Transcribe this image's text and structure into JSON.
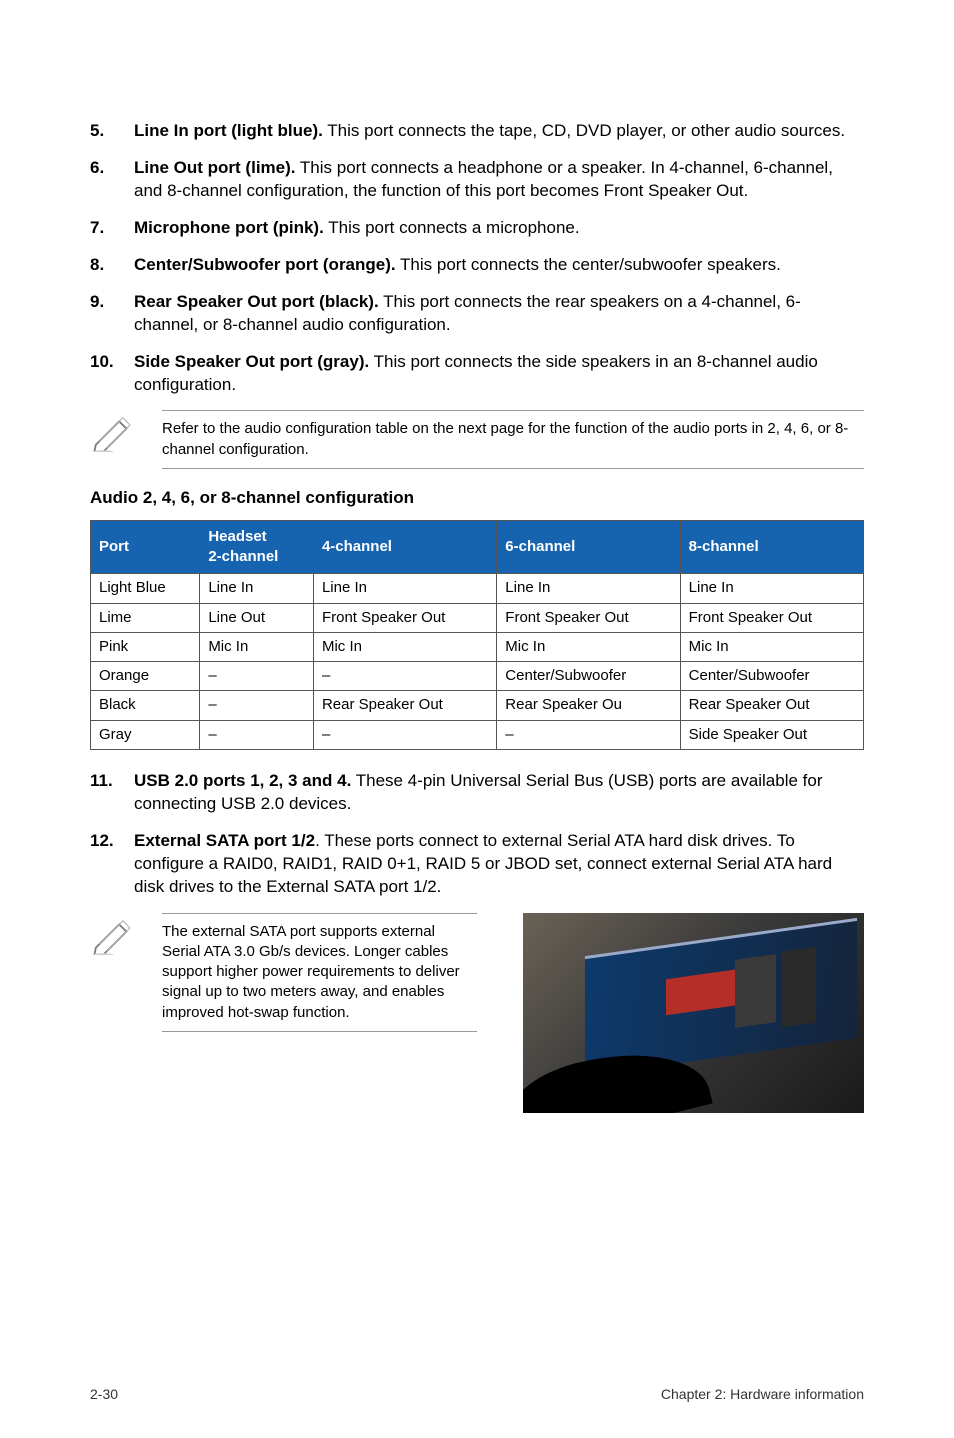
{
  "items": [
    {
      "num": "5.",
      "bold": "Line In port (light blue).",
      "text": " This port connects the tape, CD, DVD player, or other audio sources."
    },
    {
      "num": "6.",
      "bold": "Line Out port (lime).",
      "text": " This port connects a headphone or a speaker. In 4-channel, 6-channel, and 8-channel configuration, the function of this port becomes Front Speaker Out."
    },
    {
      "num": "7.",
      "bold": "Microphone port (pink).",
      "text": " This port connects a microphone."
    },
    {
      "num": "8.",
      "bold": "Center/Subwoofer port (orange).",
      "text": " This port connects the center/subwoofer speakers."
    },
    {
      "num": "9.",
      "bold": "Rear Speaker Out port (black).",
      "text": " This port connects the rear speakers on a 4-channel, 6-channel, or 8-channel audio configuration."
    },
    {
      "num": "10.",
      "bold": "Side Speaker Out port (gray).",
      "text": " This port connects the side speakers in an 8-channel audio configuration."
    }
  ],
  "note1": "Refer to the audio configuration table on the next page for the function of the audio ports in 2, 4, 6, or 8-channel configuration.",
  "table_heading": "Audio 2, 4, 6, or 8-channel configuration",
  "table": {
    "headers": {
      "port": "Port",
      "headset_l1": "Headset",
      "headset_l2": "2-channel",
      "c4": "4-channel",
      "c6": "6-channel",
      "c8": "8-channel"
    },
    "rows": [
      [
        "Light Blue",
        "Line In",
        "Line In",
        "Line In",
        "Line In"
      ],
      [
        "Lime",
        "Line Out",
        "Front Speaker Out",
        "Front Speaker Out",
        "Front Speaker Out"
      ],
      [
        "Pink",
        "Mic In",
        "Mic In",
        "Mic In",
        "Mic In"
      ],
      [
        "Orange",
        "–",
        "–",
        "Center/Subwoofer",
        "Center/Subwoofer"
      ],
      [
        "Black",
        "–",
        "Rear Speaker Out",
        "Rear Speaker Ou",
        "Rear Speaker Out"
      ],
      [
        "Gray",
        "–",
        "–",
        "–",
        "Side Speaker Out"
      ]
    ]
  },
  "items2": [
    {
      "num": "11.",
      "bold": "USB 2.0 ports 1, 2, 3 and 4.",
      "text": " These 4-pin Universal Serial Bus (USB) ports are available for connecting USB 2.0 devices."
    },
    {
      "num": "12.",
      "bold": "External SATA port 1/2",
      "text": ". These ports connect to external Serial ATA hard disk drives. To configure a RAID0, RAID1, RAID 0+1, RAID 5 or JBOD set, connect external Serial ATA hard disk drives to the External SATA port 1/2."
    }
  ],
  "note2": "The external SATA port supports external Serial ATA 3.0 Gb/s devices. Longer cables support higher power requirements to deliver signal up to two meters away, and enables improved hot-swap function.",
  "footer_left": "2-30",
  "footer_right": "Chapter 2: Hardware information"
}
